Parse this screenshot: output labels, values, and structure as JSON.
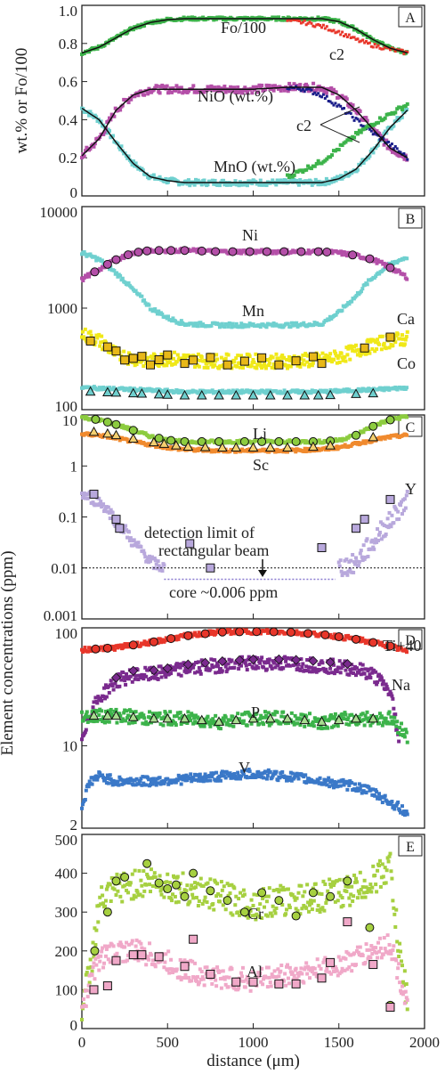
{
  "chart_data": [
    {
      "panel": "A",
      "type": "line+scatter",
      "ylabel": "wt.% or Fo/100",
      "ylim": [
        0,
        1.0
      ],
      "yticks": [
        "1.0",
        "0.8",
        "0.6",
        "0.4",
        "0.2",
        "0"
      ],
      "xlim": [
        0,
        2000
      ],
      "annotations": [
        "Fo/100",
        "c2",
        "NiO (wt.%)",
        "c2",
        "MnO (wt.%)"
      ],
      "series": [
        {
          "name": "Fo/100",
          "color": "#3cb34a",
          "x": [
            0,
            100,
            200,
            300,
            400,
            500,
            600,
            800,
            1000,
            1200,
            1400,
            1500,
            1600,
            1700,
            1800,
            1900
          ],
          "y": [
            0.75,
            0.78,
            0.83,
            0.88,
            0.91,
            0.925,
            0.93,
            0.93,
            0.93,
            0.93,
            0.93,
            0.915,
            0.875,
            0.82,
            0.775,
            0.75
          ]
        },
        {
          "name": "c2 (Fo)",
          "color": "#e8362a",
          "x": [
            1200,
            1300,
            1400,
            1500,
            1600,
            1700,
            1800,
            1900
          ],
          "y": [
            0.92,
            0.91,
            0.89,
            0.86,
            0.82,
            0.79,
            0.77,
            0.75
          ]
        },
        {
          "name": "NiO (wt.%)",
          "color": "#b44fa8",
          "x": [
            0,
            100,
            200,
            300,
            400,
            500,
            600,
            800,
            1000,
            1200,
            1400,
            1500,
            1600,
            1700,
            1800,
            1900
          ],
          "y": [
            0.21,
            0.3,
            0.45,
            0.53,
            0.56,
            0.56,
            0.56,
            0.56,
            0.56,
            0.57,
            0.57,
            0.53,
            0.45,
            0.35,
            0.25,
            0.2
          ]
        },
        {
          "name": "c2 (NiO)",
          "color": "#1a1e8a",
          "x": [
            1200,
            1300,
            1400,
            1500,
            1600,
            1700,
            1800,
            1900
          ],
          "y": [
            0.57,
            0.56,
            0.53,
            0.47,
            0.4,
            0.33,
            0.27,
            0.2
          ]
        },
        {
          "name": "MnO (wt.%)",
          "color": "#6fd0cf",
          "x": [
            0,
            100,
            200,
            300,
            400,
            500,
            600,
            800,
            1000,
            1200,
            1400,
            1500,
            1600,
            1700,
            1800,
            1900
          ],
          "y": [
            0.46,
            0.4,
            0.28,
            0.17,
            0.1,
            0.08,
            0.07,
            0.07,
            0.07,
            0.07,
            0.07,
            0.09,
            0.14,
            0.24,
            0.36,
            0.45
          ]
        },
        {
          "name": "c2 (MnO)",
          "color": "#3cb34a",
          "x": [
            1200,
            1300,
            1400,
            1500,
            1600,
            1700,
            1800,
            1900
          ],
          "y": [
            0.1,
            0.14,
            0.18,
            0.25,
            0.32,
            0.38,
            0.43,
            0.48
          ]
        }
      ]
    },
    {
      "panel": "B",
      "type": "scatter",
      "scale": "log",
      "ylim": [
        100,
        10000
      ],
      "yticks": [
        "10000",
        "1000",
        "100"
      ],
      "annotations": [
        "Ni",
        "Mn",
        "Ca",
        "Co"
      ],
      "series": [
        {
          "name": "Ni",
          "color": "#b44fa8",
          "x": [
            0,
            100,
            200,
            300,
            400,
            500,
            600,
            800,
            1000,
            1200,
            1400,
            1500,
            1600,
            1700,
            1800,
            1900
          ],
          "y": [
            1900,
            2400,
            3000,
            3500,
            3700,
            3700,
            3700,
            3600,
            3600,
            3600,
            3600,
            3500,
            3300,
            3000,
            2500,
            2000
          ]
        },
        {
          "name": "Mn",
          "color": "#6fd0cf",
          "x": [
            0,
            100,
            200,
            300,
            400,
            500,
            600,
            800,
            1000,
            1200,
            1400,
            1500,
            1600,
            1700,
            1800,
            1900
          ],
          "y": [
            3500,
            3000,
            2200,
            1500,
            1000,
            800,
            700,
            680,
            680,
            680,
            700,
            900,
            1300,
            2000,
            2700,
            3200
          ]
        },
        {
          "name": "Ca",
          "color": "#f0e818",
          "x": [
            0,
            100,
            200,
            300,
            400,
            500,
            600,
            800,
            1000,
            1200,
            1400,
            1500,
            1600,
            1700,
            1800,
            1900
          ],
          "y": [
            550,
            480,
            350,
            320,
            300,
            320,
            310,
            300,
            300,
            300,
            310,
            330,
            380,
            430,
            480,
            500
          ]
        },
        {
          "name": "Co",
          "color": "#6fd0cf",
          "x": [
            0,
            200,
            400,
            600,
            800,
            1000,
            1200,
            1400,
            1600,
            1800,
            1900
          ],
          "y": [
            165,
            160,
            155,
            150,
            150,
            150,
            150,
            150,
            155,
            160,
            165
          ]
        }
      ]
    },
    {
      "panel": "C",
      "type": "scatter",
      "scale": "log",
      "ylim": [
        0.001,
        10
      ],
      "yticks": [
        "10",
        "1",
        "0.1",
        "0.01",
        "0.001"
      ],
      "annotations": [
        "Li",
        "Sc",
        "Y",
        "detection limit of",
        "rectangular beam",
        "core ~0.006 ppm"
      ],
      "series": [
        {
          "name": "Li",
          "color": "#8ccc3f",
          "x": [
            0,
            100,
            200,
            300,
            400,
            500,
            600,
            800,
            1000,
            1200,
            1400,
            1500,
            1600,
            1700,
            1800,
            1900
          ],
          "y": [
            9,
            8,
            6.5,
            5,
            3.8,
            3.2,
            3,
            3,
            3,
            3,
            3,
            3.2,
            4,
            6,
            8,
            9.5
          ]
        },
        {
          "name": "Sc",
          "color": "#f08a2e",
          "x": [
            0,
            100,
            200,
            300,
            400,
            500,
            600,
            800,
            1000,
            1200,
            1400,
            1500,
            1600,
            1700,
            1800,
            1900
          ],
          "y": [
            4.2,
            4,
            3.5,
            3,
            2.6,
            2.3,
            2.1,
            2,
            2,
            2,
            2.1,
            2.3,
            2.7,
            3.2,
            3.7,
            4
          ]
        },
        {
          "name": "Y",
          "color": "#b8a8dc",
          "x": [
            0,
            100,
            200,
            300,
            400,
            480,
            1500,
            1600,
            1700,
            1800,
            1900
          ],
          "y": [
            0.28,
            0.2,
            0.08,
            0.03,
            0.013,
            0.01,
            0.01,
            0.012,
            0.03,
            0.08,
            0.2
          ]
        }
      ],
      "detection_limit": 0.01,
      "core_value": 0.006
    },
    {
      "panel": "D",
      "type": "scatter",
      "scale": "log",
      "ylim": [
        2,
        100
      ],
      "yticks": [
        "100",
        "10",
        "2"
      ],
      "ylabel": "Element concentrations (ppm)",
      "annotations": [
        "Ti+40",
        "Na",
        "P",
        "V"
      ],
      "series": [
        {
          "name": "Ti+40",
          "color": "#e8362a",
          "x": [
            0,
            200,
            400,
            600,
            800,
            1000,
            1200,
            1400,
            1600,
            1800,
            1900
          ],
          "y": [
            65,
            68,
            75,
            85,
            92,
            93,
            92,
            88,
            80,
            70,
            62
          ]
        },
        {
          "name": "Na",
          "color": "#7a2a8e",
          "x": [
            0,
            100,
            200,
            300,
            400,
            500,
            600,
            800,
            1000,
            1200,
            1400,
            1600,
            1700,
            1800,
            1850
          ],
          "y": [
            12,
            25,
            35,
            40,
            40,
            42,
            45,
            48,
            50,
            50,
            48,
            45,
            40,
            28,
            10
          ]
        },
        {
          "name": "P",
          "color": "#3cb34a",
          "x": [
            0,
            200,
            400,
            600,
            800,
            1000,
            1200,
            1400,
            1600,
            1800,
            1900
          ],
          "y": [
            18,
            18,
            17,
            17,
            16,
            17,
            17,
            16,
            17,
            17,
            12
          ]
        },
        {
          "name": "V",
          "color": "#3a78c8",
          "x": [
            0,
            50,
            100,
            200,
            400,
            600,
            800,
            1000,
            1200,
            1400,
            1600,
            1700,
            1800,
            1850,
            1900
          ],
          "y": [
            3,
            5,
            5.5,
            5,
            5,
            5.2,
            5.5,
            5.8,
            5.5,
            5,
            4.5,
            4,
            3.3,
            3,
            2.6
          ]
        }
      ]
    },
    {
      "panel": "E",
      "type": "scatter",
      "ylim": [
        0,
        500
      ],
      "yticks": [
        "500",
        "400",
        "300",
        "200",
        "100",
        "0"
      ],
      "xlabel": "distance (μm)",
      "xticks": [
        "0",
        "500",
        "1000",
        "1500",
        "2000"
      ],
      "annotations": [
        "Cr",
        "Al"
      ],
      "series": [
        {
          "name": "Cr",
          "color": "#a6d040",
          "x": [
            0,
            50,
            100,
            200,
            300,
            400,
            500,
            600,
            800,
            1000,
            1200,
            1400,
            1600,
            1700,
            1800,
            1850,
            1900
          ],
          "y": [
            60,
            150,
            320,
            360,
            370,
            380,
            370,
            360,
            340,
            320,
            330,
            340,
            360,
            380,
            420,
            200,
            80
          ]
        },
        {
          "name": "Al",
          "color": "#f0a8c8",
          "x": [
            0,
            50,
            100,
            200,
            300,
            400,
            500,
            600,
            800,
            1000,
            1200,
            1400,
            1600,
            1700,
            1800,
            1850,
            1900
          ],
          "y": [
            50,
            120,
            180,
            200,
            200,
            190,
            170,
            150,
            130,
            125,
            140,
            150,
            180,
            200,
            220,
            140,
            60
          ]
        }
      ],
      "marker_series": [
        {
          "name": "Cr markers",
          "x": [
            75,
            150,
            200,
            250,
            380,
            450,
            500,
            550,
            600,
            650,
            750,
            850,
            950,
            1050,
            1150,
            1250,
            1350,
            1450,
            1550,
            1680,
            1800
          ],
          "y": [
            200,
            300,
            380,
            390,
            425,
            375,
            360,
            370,
            340,
            400,
            355,
            330,
            300,
            350,
            330,
            290,
            350,
            340,
            380,
            260,
            60
          ]
        },
        {
          "name": "Al markers",
          "x": [
            70,
            150,
            200,
            300,
            350,
            450,
            600,
            650,
            750,
            900,
            1000,
            1150,
            1250,
            1400,
            1450,
            1550,
            1700,
            1800
          ],
          "y": [
            100,
            110,
            175,
            190,
            190,
            185,
            160,
            230,
            140,
            120,
            120,
            115,
            115,
            130,
            170,
            275,
            165,
            55
          ]
        }
      ]
    }
  ]
}
